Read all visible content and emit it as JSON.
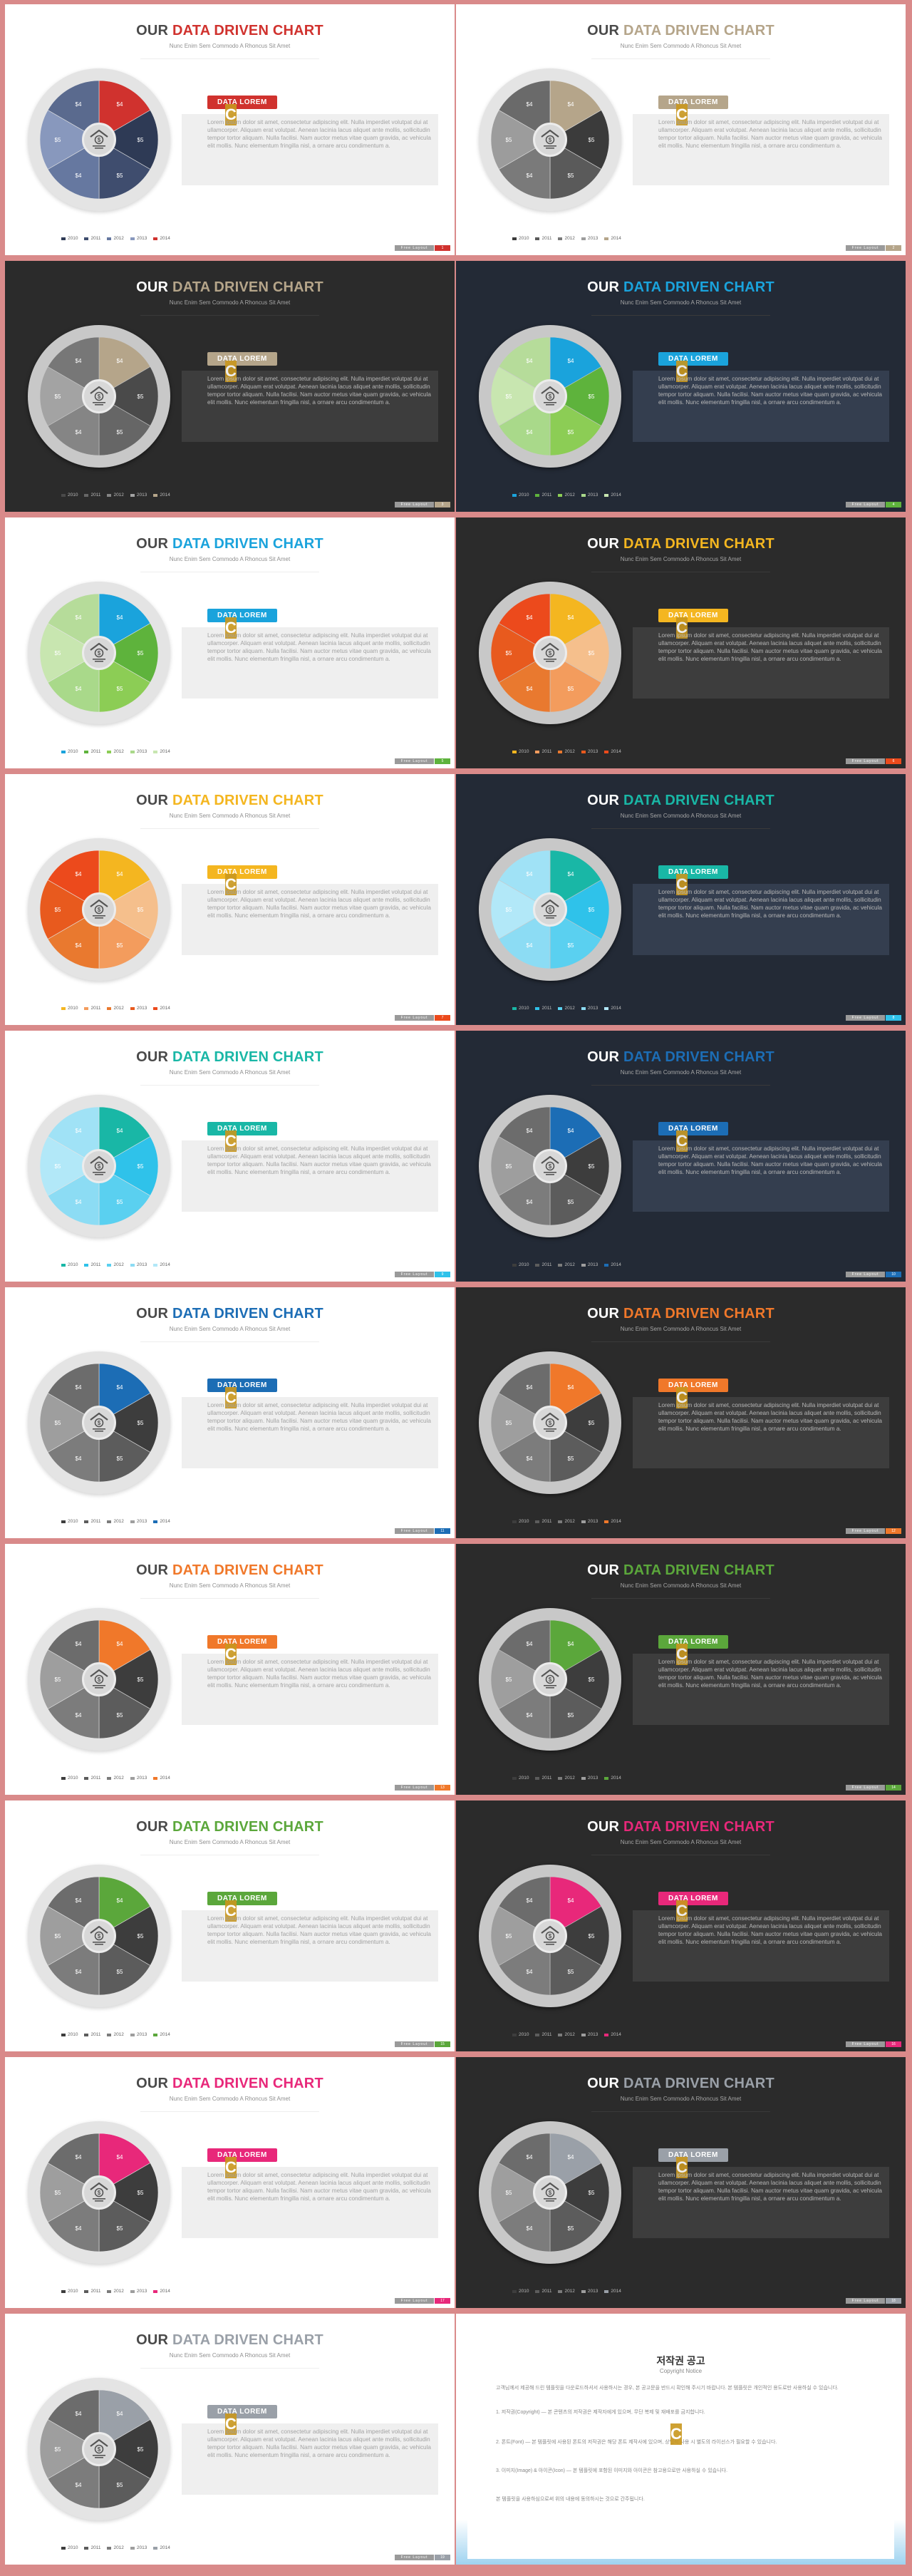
{
  "common": {
    "title_prefix": "OUR ",
    "title_main": "DATA DRIVEN CHART",
    "subtitle": "Nunc Enim Sem Commodo A Rhoncus Sit Amet",
    "tag": "DATA  LOREM",
    "body": "Lorem ipsum dolor sit amet, consectetur adipiscing elit. Nulla imperdiet volutpat dui at ullamcorper. Aliquam erat volutpat. Aenean lacinia lacus aliquet ante mollis, sollicitudin tempor tortor aliquam. Nulla facilisi. Nam auctor metus vitae quam gravida, ac vehicula elit mollis. Nunc elementum fringilla nisl, a ornare arcu condimentum a.",
    "footer": "Free Layout",
    "stamp": "C"
  },
  "chart_data": {
    "type": "pie",
    "slice_count": 6,
    "labels": [
      "$4",
      "$5",
      "$5",
      "$4",
      "$5",
      "$4"
    ],
    "legend": [
      "2010",
      "2011",
      "2012",
      "2013",
      "2014"
    ]
  },
  "copyright": {
    "title": "저작권 공고",
    "subtitle": "Copyright Notice",
    "p1": "고객님께서 제공해 드린 템플릿을 다운로드하셔서 사용하시는 경우, 본 공고문을 반드시 확인해 주시기 바랍니다. 본 템플릿은 개인적인 용도로만 사용하실 수 있습니다.",
    "p2": "1. 저작권(Copyright) — 본 콘텐츠의 저작권은 제작자에게 있으며, 무단 복제 및 재배포를 금지합니다.",
    "p3": "2. 폰트(Font) — 본 템플릿에 사용된 폰트의 저작권은 해당 폰트 제작사에 있으며, 상업적 사용 시 별도의 라이선스가 필요할 수 있습니다.",
    "p4": "3. 이미지(Image) & 아이콘(Icon) — 본 템플릿에 포함된 이미지와 아이콘은 참고용으로만 사용하실 수 있습니다.",
    "p5": "본 템플릿을 사용하심으로써 위의 내용에 동의하시는 것으로 간주됩니다."
  },
  "slides": [
    {
      "theme": "light",
      "accent": "#d0322e",
      "sliceColors": [
        "#d0322e",
        "#2e3a55",
        "#3f4d6e",
        "#6678a0",
        "#8898bd",
        "#5a6a8e"
      ],
      "legendColors": [
        "#2e3a55",
        "#3f4d6e",
        "#6678a0",
        "#8898bd",
        "#d0322e"
      ],
      "page": "1"
    },
    {
      "theme": "light",
      "accent": "#b5a58a",
      "sliceColors": [
        "#b5a58a",
        "#3b3b3b",
        "#5a5a5a",
        "#7a7a7a",
        "#9c9c9c",
        "#6a6a6a"
      ],
      "legendColors": [
        "#3b3b3b",
        "#5a5a5a",
        "#7a7a7a",
        "#9c9c9c",
        "#b5a58a"
      ],
      "page": "2"
    },
    {
      "theme": "dark1",
      "accent": "#b5a58a",
      "sliceColors": [
        "#b5a58a",
        "#4a4a4a",
        "#666666",
        "#858585",
        "#a3a3a3",
        "#777777"
      ],
      "legendColors": [
        "#4a4a4a",
        "#666666",
        "#858585",
        "#a3a3a3",
        "#b5a58a"
      ],
      "page": "3"
    },
    {
      "theme": "dark2",
      "accent": "#1aa3dc",
      "sliceColors": [
        "#1aa3dc",
        "#5eb33c",
        "#8ccd55",
        "#a9d98a",
        "#c8e6b0",
        "#b6dc9a"
      ],
      "legendColors": [
        "#1aa3dc",
        "#5eb33c",
        "#8ccd55",
        "#a9d98a",
        "#c8e6b0"
      ],
      "page": "4",
      "accent2": "#5eb33c"
    },
    {
      "theme": "light",
      "accent": "#1aa3dc",
      "sliceColors": [
        "#1aa3dc",
        "#5eb33c",
        "#8ccd55",
        "#a9d98a",
        "#c8e6b0",
        "#b6dc9a"
      ],
      "legendColors": [
        "#1aa3dc",
        "#5eb33c",
        "#8ccd55",
        "#a9d98a",
        "#c8e6b0"
      ],
      "page": "5",
      "accent2": "#5eb33c"
    },
    {
      "theme": "dark1",
      "accent": "#f4b620",
      "sliceColors": [
        "#f4b620",
        "#f5bf8c",
        "#f39c5d",
        "#e9792f",
        "#e85a1e",
        "#ec4a1c"
      ],
      "legendColors": [
        "#f4b620",
        "#f39c5d",
        "#e9792f",
        "#e85a1e",
        "#ec4a1c"
      ],
      "page": "6",
      "accent2": "#ec4a1c"
    },
    {
      "theme": "light",
      "accent": "#f4b620",
      "sliceColors": [
        "#f4b620",
        "#f5bf8c",
        "#f39c5d",
        "#e9792f",
        "#e85a1e",
        "#ec4a1c"
      ],
      "legendColors": [
        "#f4b620",
        "#f39c5d",
        "#e9792f",
        "#e85a1e",
        "#ec4a1c"
      ],
      "page": "7",
      "accent2": "#ec4a1c"
    },
    {
      "theme": "dark2",
      "accent": "#19b7a6",
      "sliceColors": [
        "#19b7a6",
        "#2fc2ea",
        "#5ad0f0",
        "#8cdcf4",
        "#b2e8f8",
        "#a0e2f6"
      ],
      "legendColors": [
        "#19b7a6",
        "#2fc2ea",
        "#5ad0f0",
        "#8cdcf4",
        "#b2e8f8"
      ],
      "page": "8",
      "accent2": "#2fc2ea"
    },
    {
      "theme": "light",
      "accent": "#19b7a6",
      "sliceColors": [
        "#19b7a6",
        "#2fc2ea",
        "#5ad0f0",
        "#8cdcf4",
        "#b2e8f8",
        "#a0e2f6"
      ],
      "legendColors": [
        "#19b7a6",
        "#2fc2ea",
        "#5ad0f0",
        "#8cdcf4",
        "#b2e8f8"
      ],
      "page": "9",
      "accent2": "#2fc2ea"
    },
    {
      "theme": "dark2",
      "accent": "#1c6db5",
      "sliceColors": [
        "#1c6db5",
        "#3d3d3d",
        "#5c5c5c",
        "#7c7c7c",
        "#9e9e9e",
        "#6c6c6c"
      ],
      "legendColors": [
        "#3d3d3d",
        "#5c5c5c",
        "#7c7c7c",
        "#9e9e9e",
        "#1c6db5"
      ],
      "page": "10"
    },
    {
      "theme": "light",
      "accent": "#1c6db5",
      "sliceColors": [
        "#1c6db5",
        "#3d3d3d",
        "#5c5c5c",
        "#7c7c7c",
        "#9e9e9e",
        "#6c6c6c"
      ],
      "legendColors": [
        "#3d3d3d",
        "#5c5c5c",
        "#7c7c7c",
        "#9e9e9e",
        "#1c6db5"
      ],
      "page": "11"
    },
    {
      "theme": "dark1",
      "accent": "#f0782a",
      "sliceColors": [
        "#f0782a",
        "#3d3d3d",
        "#5c5c5c",
        "#7c7c7c",
        "#9e9e9e",
        "#6c6c6c"
      ],
      "legendColors": [
        "#3d3d3d",
        "#5c5c5c",
        "#7c7c7c",
        "#9e9e9e",
        "#f0782a"
      ],
      "page": "12"
    },
    {
      "theme": "light",
      "accent": "#f0782a",
      "sliceColors": [
        "#f0782a",
        "#3d3d3d",
        "#5c5c5c",
        "#7c7c7c",
        "#9e9e9e",
        "#6c6c6c"
      ],
      "legendColors": [
        "#3d3d3d",
        "#5c5c5c",
        "#7c7c7c",
        "#9e9e9e",
        "#f0782a"
      ],
      "page": "13"
    },
    {
      "theme": "dark1",
      "accent": "#5ba73b",
      "sliceColors": [
        "#5ba73b",
        "#3d3d3d",
        "#5c5c5c",
        "#7c7c7c",
        "#9e9e9e",
        "#6c6c6c"
      ],
      "legendColors": [
        "#3d3d3d",
        "#5c5c5c",
        "#7c7c7c",
        "#9e9e9e",
        "#5ba73b"
      ],
      "page": "14"
    },
    {
      "theme": "light",
      "accent": "#5ba73b",
      "sliceColors": [
        "#5ba73b",
        "#3d3d3d",
        "#5c5c5c",
        "#7c7c7c",
        "#9e9e9e",
        "#6c6c6c"
      ],
      "legendColors": [
        "#3d3d3d",
        "#5c5c5c",
        "#7c7c7c",
        "#9e9e9e",
        "#5ba73b"
      ],
      "page": "15"
    },
    {
      "theme": "dark1",
      "accent": "#e8287a",
      "sliceColors": [
        "#e8287a",
        "#3d3d3d",
        "#5c5c5c",
        "#7c7c7c",
        "#9e9e9e",
        "#6c6c6c"
      ],
      "legendColors": [
        "#3d3d3d",
        "#5c5c5c",
        "#7c7c7c",
        "#9e9e9e",
        "#e8287a"
      ],
      "page": "16"
    },
    {
      "theme": "light",
      "accent": "#e8287a",
      "sliceColors": [
        "#e8287a",
        "#3d3d3d",
        "#5c5c5c",
        "#7c7c7c",
        "#9e9e9e",
        "#6c6c6c"
      ],
      "legendColors": [
        "#3d3d3d",
        "#5c5c5c",
        "#7c7c7c",
        "#9e9e9e",
        "#e8287a"
      ],
      "page": "17"
    },
    {
      "theme": "dark1",
      "accent": "#9aa0a8",
      "sliceColors": [
        "#9aa0a8",
        "#3d3d3d",
        "#5c5c5c",
        "#7c7c7c",
        "#9e9e9e",
        "#6c6c6c"
      ],
      "legendColors": [
        "#3d3d3d",
        "#5c5c5c",
        "#7c7c7c",
        "#9e9e9e",
        "#9aa0a8"
      ],
      "page": "18"
    },
    {
      "theme": "light",
      "accent": "#9aa0a8",
      "sliceColors": [
        "#9aa0a8",
        "#3d3d3d",
        "#5c5c5c",
        "#7c7c7c",
        "#9e9e9e",
        "#6c6c6c"
      ],
      "legendColors": [
        "#3d3d3d",
        "#5c5c5c",
        "#7c7c7c",
        "#9e9e9e",
        "#9aa0a8"
      ],
      "page": "19"
    }
  ]
}
